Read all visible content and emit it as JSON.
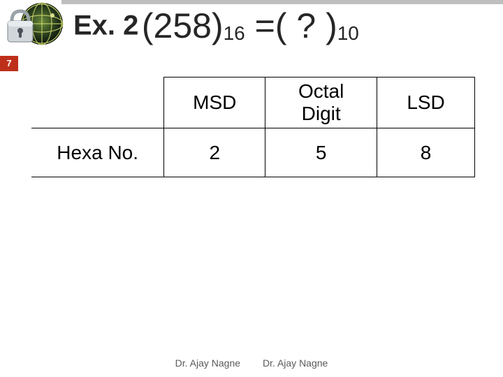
{
  "slide": {
    "number": "7",
    "topbar_color": "#bfbfbf",
    "slidenum_bg": "#be2f1a"
  },
  "title": {
    "ex_label": "Ex. 2",
    "open": "(258)",
    "base1": "16",
    "mid": " =(   ?   )",
    "base2": "10"
  },
  "table": {
    "headers": [
      "",
      "MSD",
      "Octal Digit",
      "LSD"
    ],
    "row_label": "Hexa No.",
    "row_values": [
      "2",
      "5",
      "8"
    ],
    "col_widths": [
      "190px",
      "145px",
      "160px",
      "140px"
    ]
  },
  "footer": {
    "left": "Dr. Ajay Nagne",
    "right": "Dr. Ajay Nagne"
  },
  "logo": {
    "globe_stroke": "#d7e08a",
    "globe_fill_dark": "#1a2a14",
    "lock_body": "#b8bfc4",
    "lock_shadow": "#6f7a80"
  }
}
